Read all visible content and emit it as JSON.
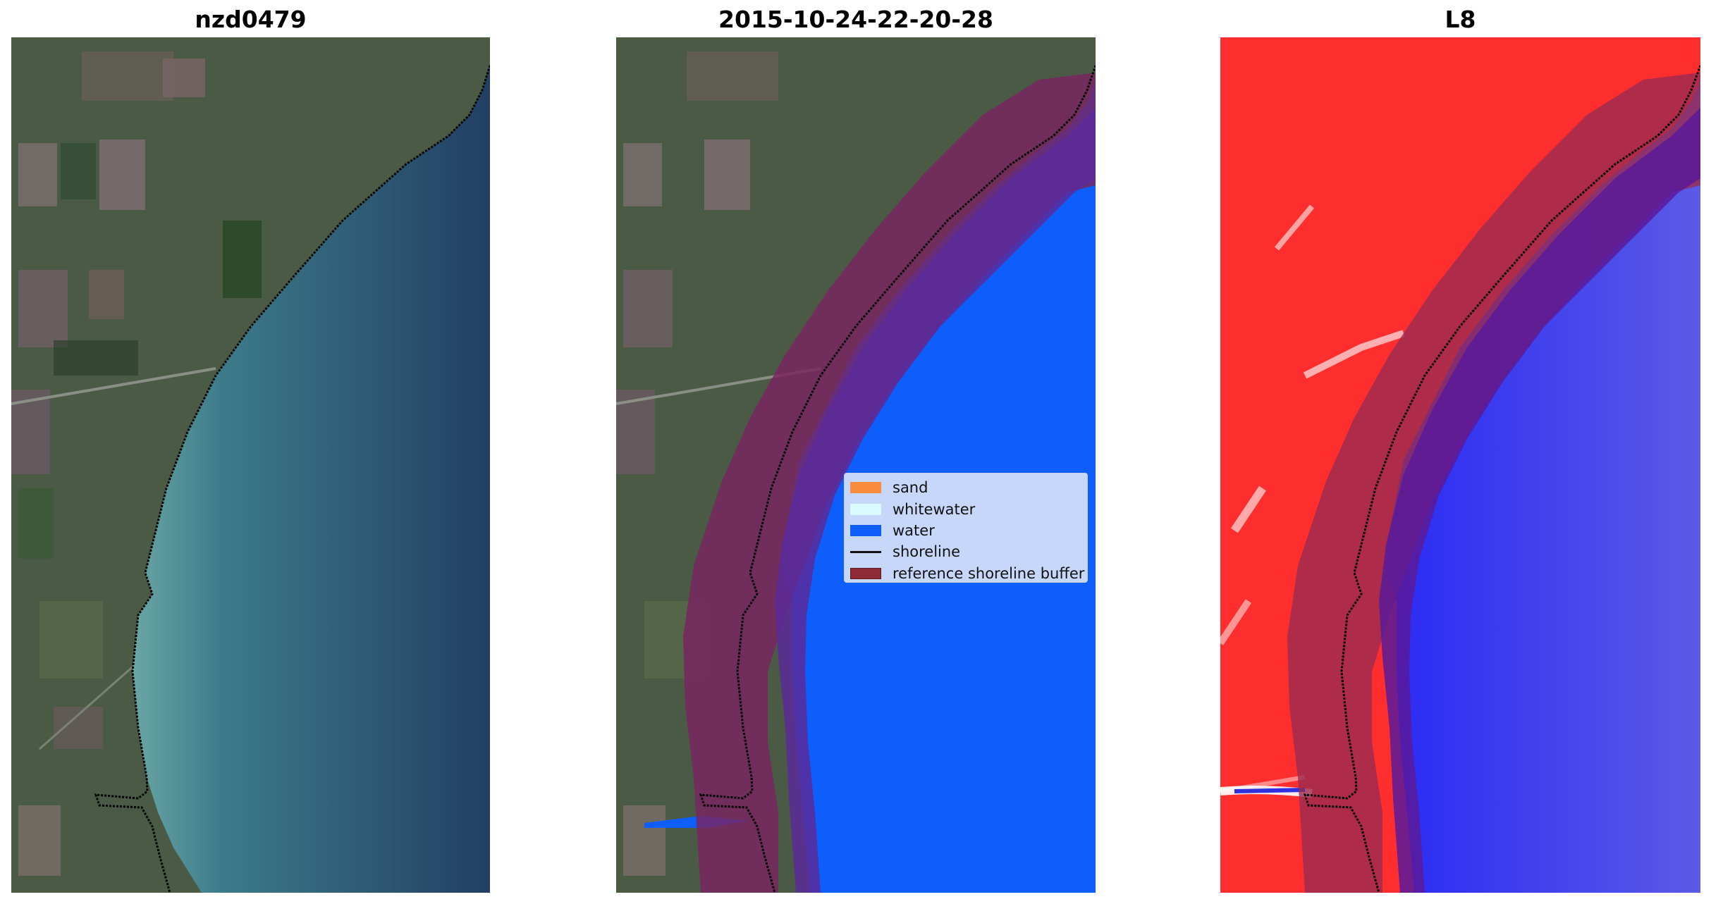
{
  "panels": [
    {
      "title": "nzd0479"
    },
    {
      "title": "2015-10-24-22-20-28"
    },
    {
      "title": "L8"
    }
  ],
  "legend": {
    "items": [
      {
        "label": "sand",
        "color": "#f98b3c",
        "kind": "patch"
      },
      {
        "label": "whitewater",
        "color": "#d9fbff",
        "kind": "patch"
      },
      {
        "label": "water",
        "color": "#0d5efa",
        "kind": "patch"
      },
      {
        "label": "shoreline",
        "color": "#000000",
        "kind": "line"
      },
      {
        "label": "reference shoreline buffer",
        "color": "#8e2a35",
        "kind": "patch"
      }
    ]
  },
  "colors": {
    "land_rgb": "#4a5a44",
    "sea_rgb": "#2a4e6e",
    "surf": "#9fc8c8",
    "water_class": "#0d5efa",
    "buffer": "#7a2360",
    "buffer_sea": "#5a2a9a",
    "mndwi_land": "#ff2020",
    "mndwi_sea": "#3a3af0"
  }
}
